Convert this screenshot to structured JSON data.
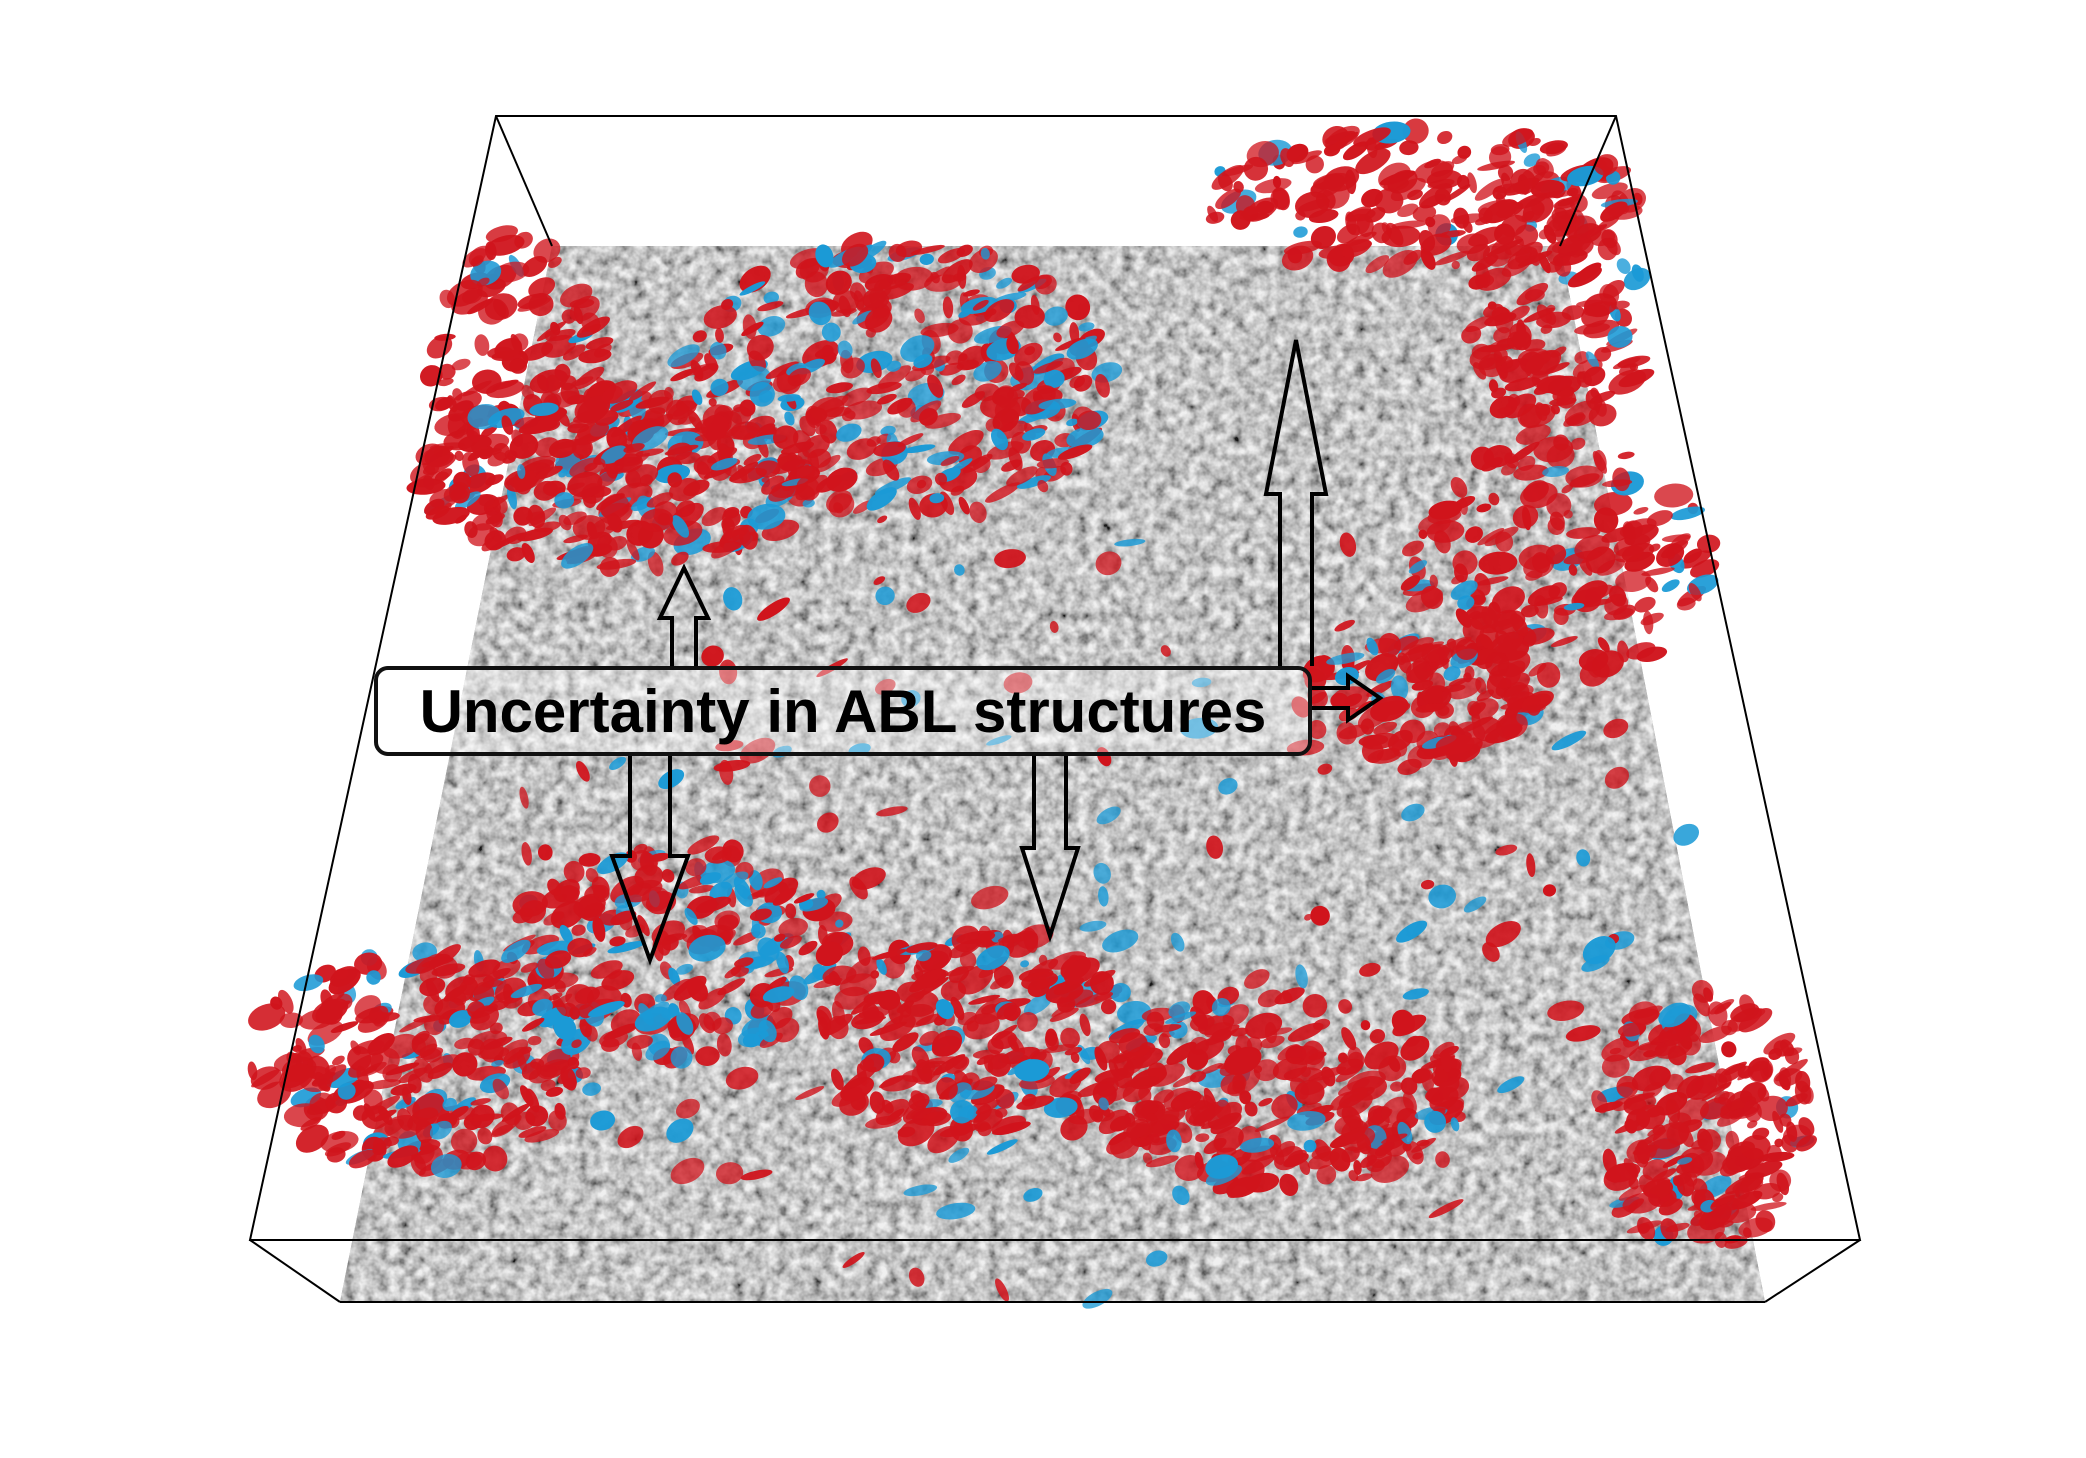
{
  "annotation": {
    "label": "Uncertainty in ABL structures"
  },
  "colors": {
    "positive_isosurface": "#d0141c",
    "negative_isosurface": "#1b9ad6",
    "frame": "#000000",
    "slice_base": "#9a9a9a"
  }
}
